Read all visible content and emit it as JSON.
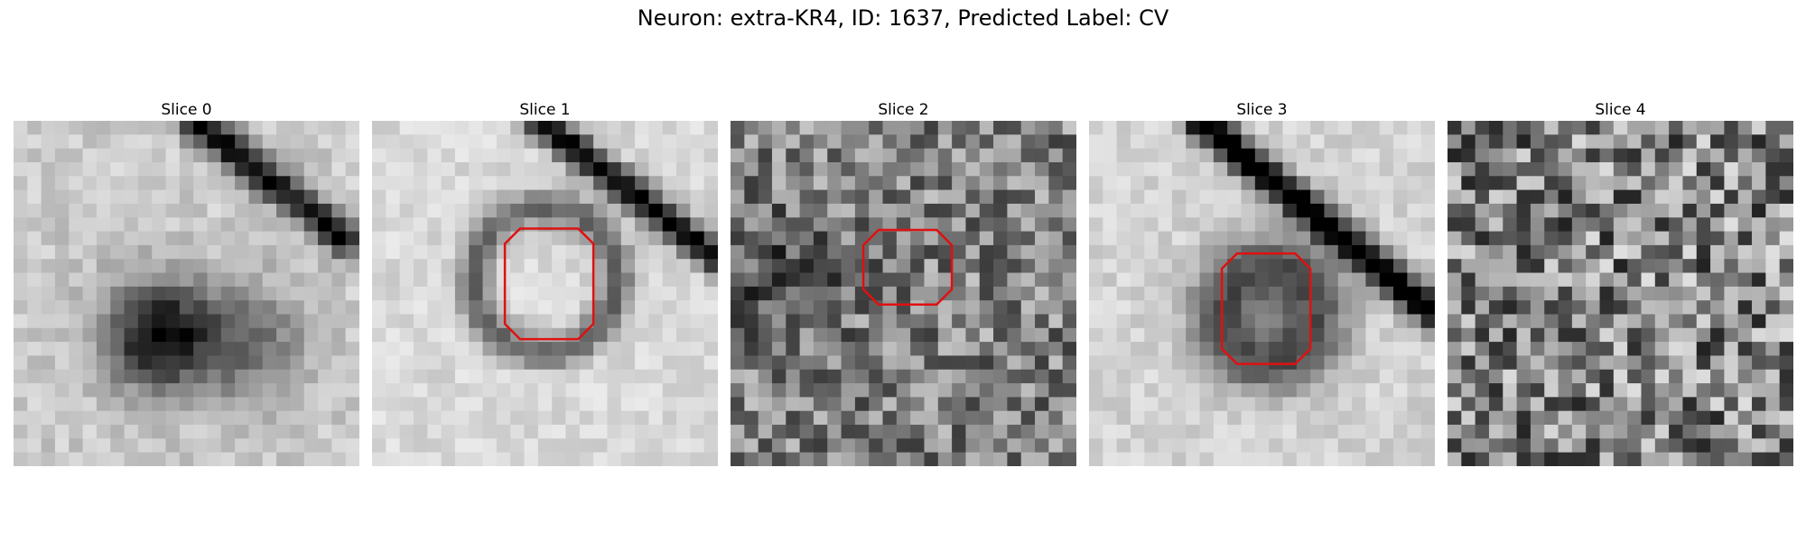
{
  "figure": {
    "title": "Neuron: extra-KR4, ID: 1637, Predicted Label: CV"
  },
  "panels": [
    {
      "title": "Slice 0",
      "has_outline": false
    },
    {
      "title": "Slice 1",
      "has_outline": true
    },
    {
      "title": "Slice 2",
      "has_outline": true
    },
    {
      "title": "Slice 3",
      "has_outline": true
    },
    {
      "title": "Slice 4",
      "has_outline": false
    }
  ],
  "colors": {
    "outline": "#e01010",
    "colormap": "gray_r"
  }
}
